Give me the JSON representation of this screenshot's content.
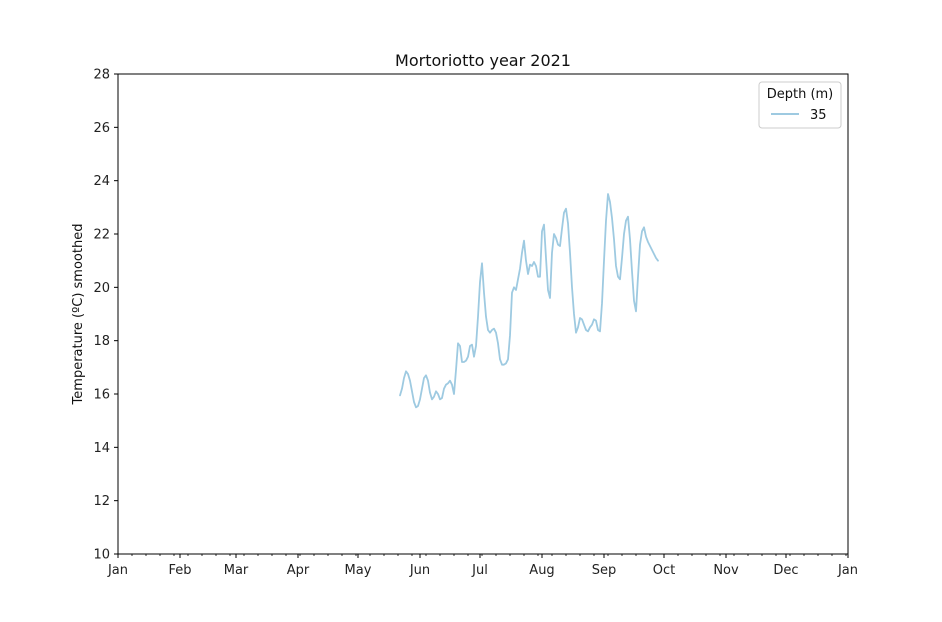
{
  "chart_data": {
    "type": "line",
    "title": "Mortoriotto year 2021",
    "xlabel": "",
    "ylabel": "Temperature (ºC) smoothed",
    "xlim": [
      "2021-01-01",
      "2022-01-01"
    ],
    "ylim": [
      10,
      28
    ],
    "yticks": [
      10,
      12,
      14,
      16,
      18,
      20,
      22,
      24,
      26,
      28
    ],
    "xticks": [
      {
        "date": "2021-01-01",
        "label": "Jan"
      },
      {
        "date": "2021-02-01",
        "label": "Feb"
      },
      {
        "date": "2021-03-01",
        "label": "Mar"
      },
      {
        "date": "2021-04-01",
        "label": "Apr"
      },
      {
        "date": "2021-05-01",
        "label": "May"
      },
      {
        "date": "2021-06-01",
        "label": "Jun"
      },
      {
        "date": "2021-07-01",
        "label": "Jul"
      },
      {
        "date": "2021-08-01",
        "label": "Aug"
      },
      {
        "date": "2021-09-01",
        "label": "Sep"
      },
      {
        "date": "2021-10-01",
        "label": "Oct"
      },
      {
        "date": "2021-11-01",
        "label": "Nov"
      },
      {
        "date": "2021-12-01",
        "label": "Dec"
      },
      {
        "date": "2022-01-01",
        "label": "Jan"
      }
    ],
    "grid": false,
    "legend": {
      "title": "Depth (m)",
      "placement": "top-right"
    },
    "series": [
      {
        "name": "35",
        "color": "#9ecae1",
        "points": [
          [
            "2021-05-22",
            15.95
          ],
          [
            "2021-05-23",
            16.2
          ],
          [
            "2021-05-24",
            16.6
          ],
          [
            "2021-05-25",
            16.85
          ],
          [
            "2021-05-26",
            16.75
          ],
          [
            "2021-05-27",
            16.5
          ],
          [
            "2021-05-28",
            16.1
          ],
          [
            "2021-05-29",
            15.7
          ],
          [
            "2021-05-30",
            15.5
          ],
          [
            "2021-05-31",
            15.55
          ],
          [
            "2021-06-01",
            15.8
          ],
          [
            "2021-06-02",
            16.2
          ],
          [
            "2021-06-03",
            16.6
          ],
          [
            "2021-06-04",
            16.7
          ],
          [
            "2021-06-05",
            16.5
          ],
          [
            "2021-06-06",
            16.05
          ],
          [
            "2021-06-07",
            15.8
          ],
          [
            "2021-06-08",
            15.9
          ],
          [
            "2021-06-09",
            16.1
          ],
          [
            "2021-06-10",
            16.0
          ],
          [
            "2021-06-11",
            15.8
          ],
          [
            "2021-06-12",
            15.85
          ],
          [
            "2021-06-13",
            16.2
          ],
          [
            "2021-06-14",
            16.35
          ],
          [
            "2021-06-15",
            16.4
          ],
          [
            "2021-06-16",
            16.5
          ],
          [
            "2021-06-17",
            16.35
          ],
          [
            "2021-06-18",
            16.0
          ],
          [
            "2021-06-19",
            16.9
          ],
          [
            "2021-06-20",
            17.9
          ],
          [
            "2021-06-21",
            17.8
          ],
          [
            "2021-06-22",
            17.2
          ],
          [
            "2021-06-23",
            17.2
          ],
          [
            "2021-06-24",
            17.25
          ],
          [
            "2021-06-25",
            17.4
          ],
          [
            "2021-06-26",
            17.8
          ],
          [
            "2021-06-27",
            17.85
          ],
          [
            "2021-06-28",
            17.4
          ],
          [
            "2021-06-29",
            17.8
          ],
          [
            "2021-06-30",
            18.9
          ],
          [
            "2021-07-01",
            20.2
          ],
          [
            "2021-07-02",
            20.9
          ],
          [
            "2021-07-03",
            19.8
          ],
          [
            "2021-07-04",
            18.9
          ],
          [
            "2021-07-05",
            18.4
          ],
          [
            "2021-07-06",
            18.3
          ],
          [
            "2021-07-07",
            18.4
          ],
          [
            "2021-07-08",
            18.45
          ],
          [
            "2021-07-09",
            18.3
          ],
          [
            "2021-07-10",
            17.9
          ],
          [
            "2021-07-11",
            17.3
          ],
          [
            "2021-07-12",
            17.1
          ],
          [
            "2021-07-13",
            17.1
          ],
          [
            "2021-07-14",
            17.15
          ],
          [
            "2021-07-15",
            17.3
          ],
          [
            "2021-07-16",
            18.2
          ],
          [
            "2021-07-17",
            19.8
          ],
          [
            "2021-07-18",
            20.0
          ],
          [
            "2021-07-19",
            19.9
          ],
          [
            "2021-07-20",
            20.3
          ],
          [
            "2021-07-21",
            20.7
          ],
          [
            "2021-07-22",
            21.3
          ],
          [
            "2021-07-23",
            21.75
          ],
          [
            "2021-07-24",
            21.0
          ],
          [
            "2021-07-25",
            20.5
          ],
          [
            "2021-07-26",
            20.85
          ],
          [
            "2021-07-27",
            20.8
          ],
          [
            "2021-07-28",
            20.95
          ],
          [
            "2021-07-29",
            20.8
          ],
          [
            "2021-07-30",
            20.4
          ],
          [
            "2021-07-31",
            20.4
          ],
          [
            "2021-08-01",
            22.1
          ],
          [
            "2021-08-02",
            22.35
          ],
          [
            "2021-08-03",
            21.1
          ],
          [
            "2021-08-04",
            19.9
          ],
          [
            "2021-08-05",
            19.6
          ],
          [
            "2021-08-06",
            21.3
          ],
          [
            "2021-08-07",
            22.0
          ],
          [
            "2021-08-08",
            21.85
          ],
          [
            "2021-08-09",
            21.6
          ],
          [
            "2021-08-10",
            21.55
          ],
          [
            "2021-08-11",
            22.2
          ],
          [
            "2021-08-12",
            22.8
          ],
          [
            "2021-08-13",
            22.95
          ],
          [
            "2021-08-14",
            22.4
          ],
          [
            "2021-08-15",
            21.3
          ],
          [
            "2021-08-16",
            20.0
          ],
          [
            "2021-08-17",
            19.0
          ],
          [
            "2021-08-18",
            18.3
          ],
          [
            "2021-08-19",
            18.5
          ],
          [
            "2021-08-20",
            18.85
          ],
          [
            "2021-08-21",
            18.8
          ],
          [
            "2021-08-22",
            18.6
          ],
          [
            "2021-08-23",
            18.4
          ],
          [
            "2021-08-24",
            18.35
          ],
          [
            "2021-08-25",
            18.5
          ],
          [
            "2021-08-26",
            18.6
          ],
          [
            "2021-08-27",
            18.8
          ],
          [
            "2021-08-28",
            18.75
          ],
          [
            "2021-08-29",
            18.4
          ],
          [
            "2021-08-30",
            18.35
          ],
          [
            "2021-08-31",
            19.4
          ],
          [
            "2021-09-01",
            21.0
          ],
          [
            "2021-09-02",
            22.5
          ],
          [
            "2021-09-03",
            23.5
          ],
          [
            "2021-09-04",
            23.2
          ],
          [
            "2021-09-05",
            22.6
          ],
          [
            "2021-09-06",
            21.8
          ],
          [
            "2021-09-07",
            20.8
          ],
          [
            "2021-09-08",
            20.4
          ],
          [
            "2021-09-09",
            20.3
          ],
          [
            "2021-09-10",
            21.1
          ],
          [
            "2021-09-11",
            22.0
          ],
          [
            "2021-09-12",
            22.5
          ],
          [
            "2021-09-13",
            22.65
          ],
          [
            "2021-09-14",
            21.8
          ],
          [
            "2021-09-15",
            20.6
          ],
          [
            "2021-09-16",
            19.5
          ],
          [
            "2021-09-17",
            19.1
          ],
          [
            "2021-09-18",
            20.4
          ],
          [
            "2021-09-19",
            21.6
          ],
          [
            "2021-09-20",
            22.1
          ],
          [
            "2021-09-21",
            22.25
          ],
          [
            "2021-09-22",
            21.9
          ],
          [
            "2021-09-23",
            21.7
          ],
          [
            "2021-09-24",
            21.55
          ],
          [
            "2021-09-25",
            21.4
          ],
          [
            "2021-09-26",
            21.25
          ],
          [
            "2021-09-27",
            21.1
          ],
          [
            "2021-09-28",
            21.0
          ]
        ]
      }
    ]
  }
}
